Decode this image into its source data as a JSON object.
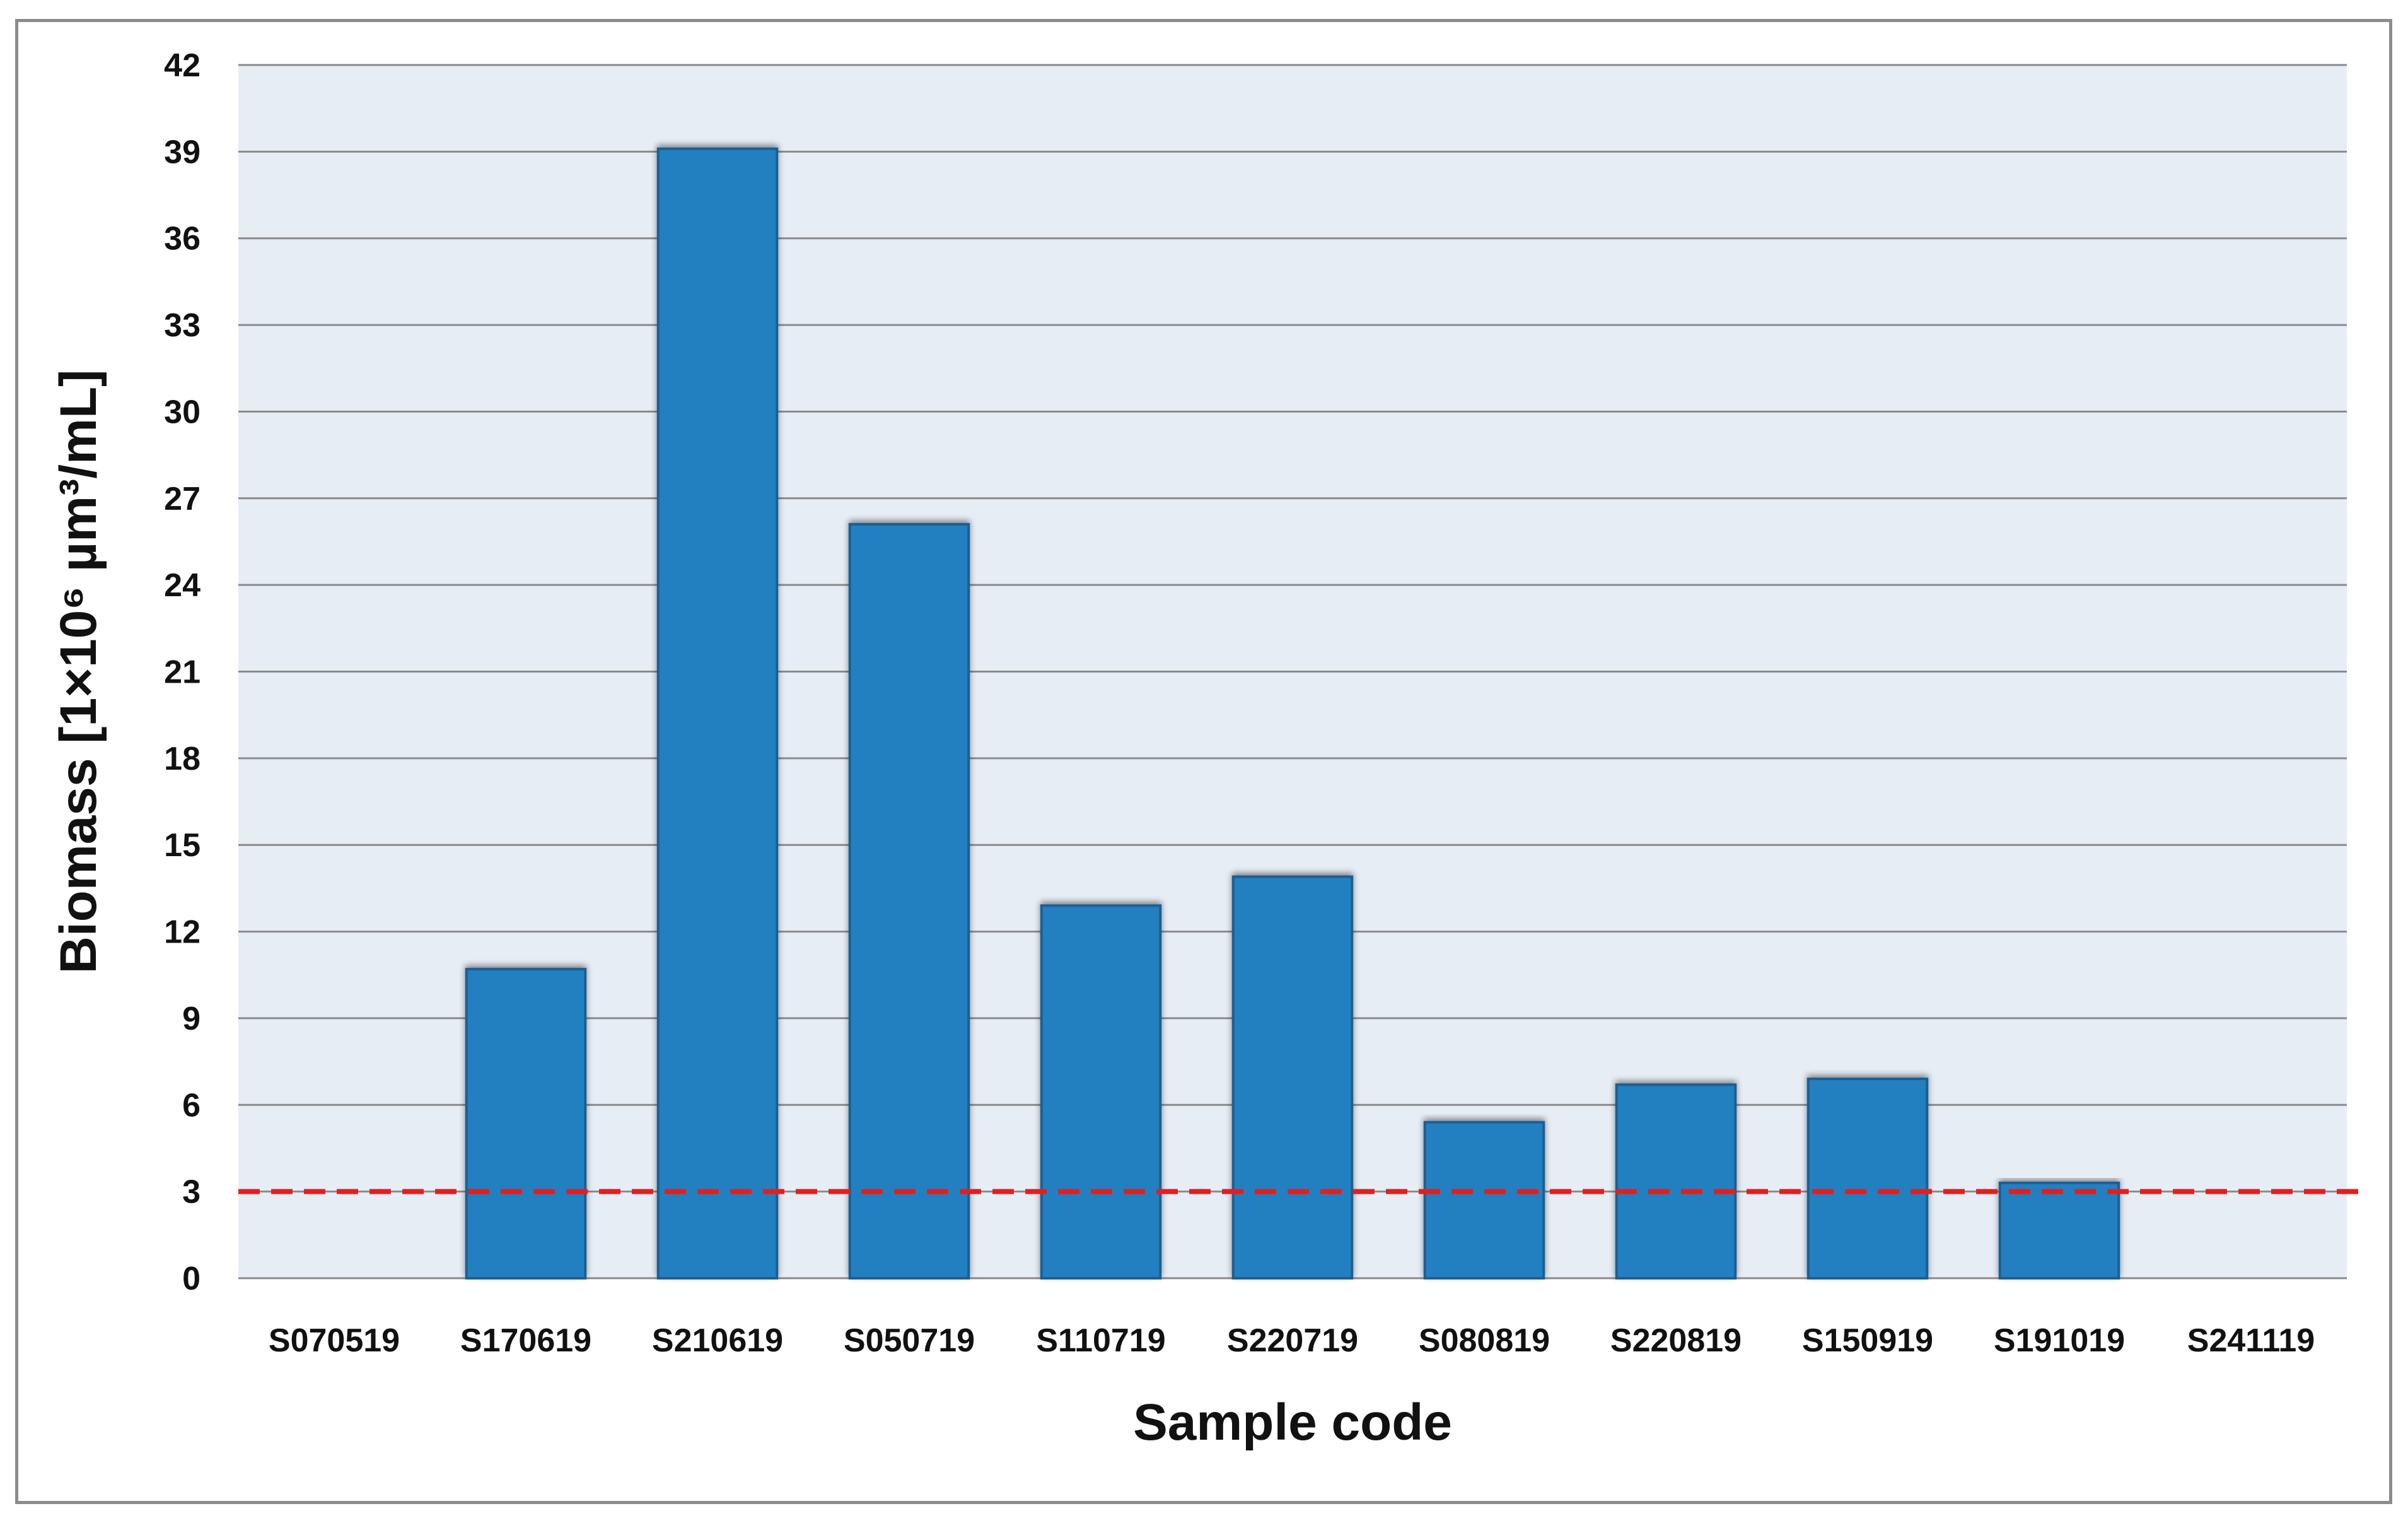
{
  "chart_data": {
    "type": "bar",
    "categories": [
      "S070519",
      "S170619",
      "S210619",
      "S050719",
      "S110719",
      "S220719",
      "S080819",
      "S220819",
      "S150919",
      "S191019",
      "S241119"
    ],
    "values": [
      0,
      10.7,
      39.1,
      26.1,
      12.9,
      13.9,
      5.4,
      6.7,
      6.9,
      3.3,
      0
    ],
    "xlabel": "Sample code",
    "ylabel": "Biomass [1×10⁶ µm³/mL]",
    "ylim": [
      0,
      42
    ],
    "yticks": [
      0,
      3,
      6,
      9,
      12,
      15,
      18,
      21,
      24,
      27,
      30,
      33,
      36,
      39,
      42
    ],
    "reference_line": {
      "value": 3,
      "style": "dashed",
      "color": "#e02020"
    },
    "grid": true,
    "legend": "none",
    "colors": {
      "bar_fill": "#2480c0",
      "bar_stroke": "#1a5f92",
      "plot_background": "#e7edf5",
      "gridline": "#8a8a8a"
    }
  }
}
